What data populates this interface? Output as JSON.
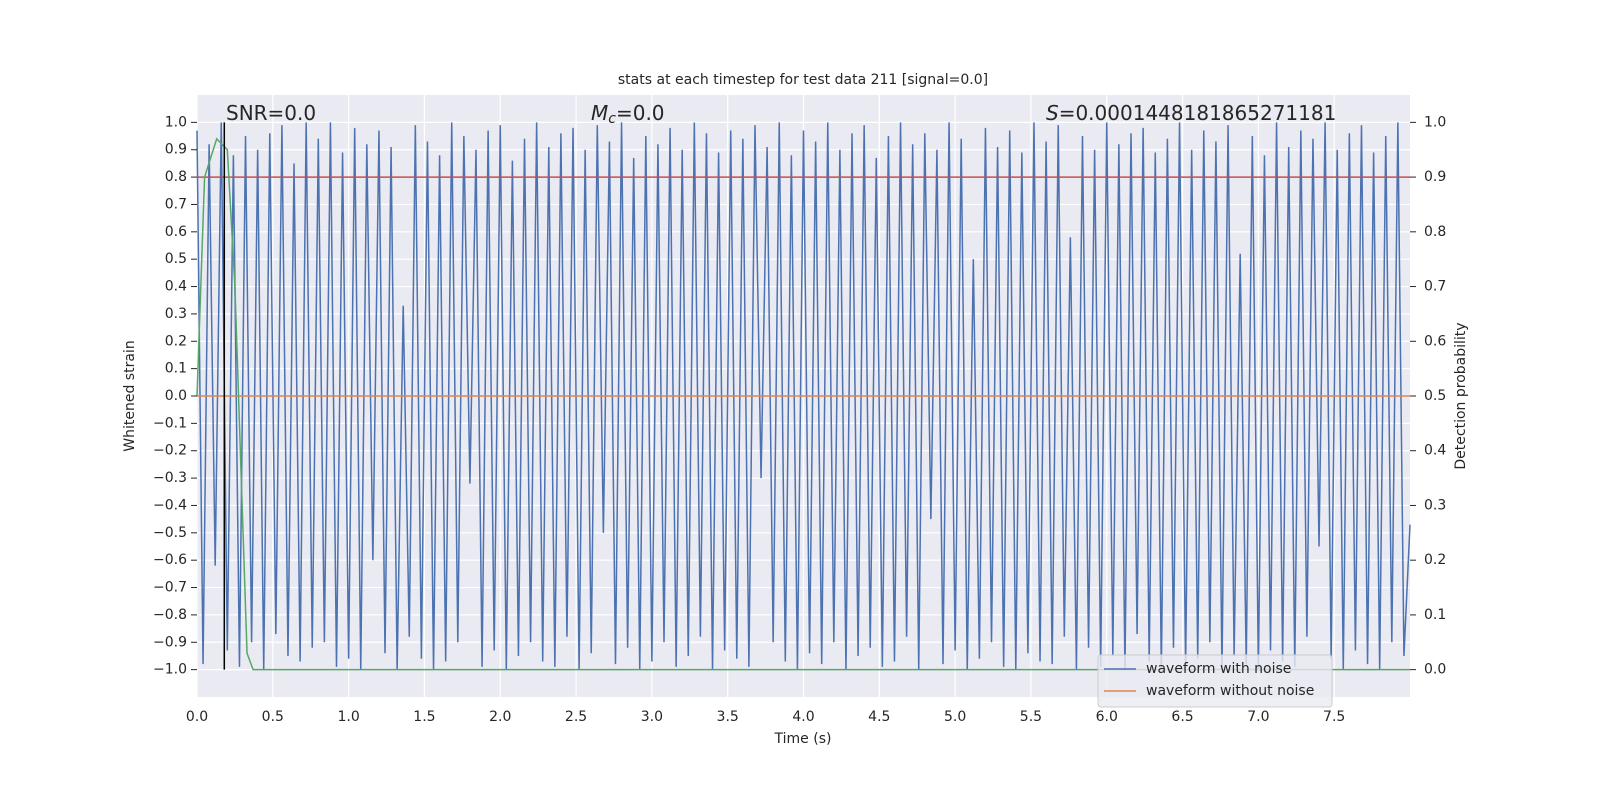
{
  "chart_data": {
    "type": "line",
    "title": "stats at each timestep for test data 211 [signal=0.0]",
    "xlabel": "Time (s)",
    "ylabel": "Whitened strain",
    "y2label": "Detection probability",
    "annotations": [
      {
        "parts": [
          "SNR=0.0"
        ]
      },
      {
        "parts": [
          "M",
          "c",
          "=0.0"
        ]
      },
      {
        "parts": [
          "S",
          "=0.0001448181865271181"
        ]
      }
    ],
    "xlim": [
      0,
      8
    ],
    "ylim": [
      -1.1,
      1.1
    ],
    "y2lim": [
      -0.05,
      1.05
    ],
    "grid": true,
    "legend": "lower right",
    "vline_x": 0.18,
    "xticks": [
      {
        "value": 0,
        "label": "0.0"
      },
      {
        "value": 0.5,
        "label": "0.5"
      },
      {
        "value": 1,
        "label": "1.0"
      },
      {
        "value": 1.5,
        "label": "1.5"
      },
      {
        "value": 2,
        "label": "2.0"
      },
      {
        "value": 2.5,
        "label": "2.5"
      },
      {
        "value": 3,
        "label": "3.0"
      },
      {
        "value": 3.5,
        "label": "3.5"
      },
      {
        "value": 4,
        "label": "4.0"
      },
      {
        "value": 4.5,
        "label": "4.5"
      },
      {
        "value": 5,
        "label": "5.0"
      },
      {
        "value": 5.5,
        "label": "5.5"
      },
      {
        "value": 6,
        "label": "6.0"
      },
      {
        "value": 6.5,
        "label": "6.5"
      },
      {
        "value": 7,
        "label": "7.0"
      },
      {
        "value": 7.5,
        "label": "7.5"
      }
    ],
    "yticks": [
      {
        "value": 1,
        "label": "1.0"
      },
      {
        "value": 0.9,
        "label": "0.9"
      },
      {
        "value": 0.8,
        "label": "0.8"
      },
      {
        "value": 0.7,
        "label": "0.7"
      },
      {
        "value": 0.6,
        "label": "0.6"
      },
      {
        "value": 0.5,
        "label": "0.5"
      },
      {
        "value": 0.4,
        "label": "0.4"
      },
      {
        "value": 0.3,
        "label": "0.3"
      },
      {
        "value": 0.2,
        "label": "0.2"
      },
      {
        "value": 0.1,
        "label": "0.1"
      },
      {
        "value": 0,
        "label": "0.0"
      },
      {
        "value": -0.1,
        "label": "−0.1"
      },
      {
        "value": -0.2,
        "label": "−0.2"
      },
      {
        "value": -0.3,
        "label": "−0.3"
      },
      {
        "value": -0.4,
        "label": "−0.4"
      },
      {
        "value": -0.5,
        "label": "−0.5"
      },
      {
        "value": -0.6,
        "label": "−0.6"
      },
      {
        "value": -0.7,
        "label": "−0.7"
      },
      {
        "value": -0.8,
        "label": "−0.8"
      },
      {
        "value": -0.9,
        "label": "−0.9"
      },
      {
        "value": -1,
        "label": "−1.0"
      }
    ],
    "y2ticks": [
      {
        "value": 1,
        "label": "1.0"
      },
      {
        "value": 0.9,
        "label": "0.9"
      },
      {
        "value": 0.8,
        "label": "0.8"
      },
      {
        "value": 0.7,
        "label": "0.7"
      },
      {
        "value": 0.6,
        "label": "0.6"
      },
      {
        "value": 0.5,
        "label": "0.5"
      },
      {
        "value": 0.4,
        "label": "0.4"
      },
      {
        "value": 0.3,
        "label": "0.3"
      },
      {
        "value": 0.2,
        "label": "0.2"
      },
      {
        "value": 0.1,
        "label": "0.1"
      },
      {
        "value": 0,
        "label": "0.0"
      }
    ],
    "series": [
      {
        "name": "waveform with noise",
        "color": "#4c72b0",
        "x": [
          0,
          0.04,
          0.08,
          0.12,
          0.16,
          0.2,
          0.24,
          0.28,
          0.32,
          0.36,
          0.4,
          0.44,
          0.48,
          0.52,
          0.56,
          0.6,
          0.64,
          0.68,
          0.72,
          0.76,
          0.8,
          0.84,
          0.88,
          0.92,
          0.96,
          1,
          1.04,
          1.08,
          1.12,
          1.16,
          1.2,
          1.24,
          1.28,
          1.32,
          1.36,
          1.4,
          1.44,
          1.48,
          1.52,
          1.56,
          1.6,
          1.64,
          1.68,
          1.72,
          1.76,
          1.8,
          1.84,
          1.88,
          1.92,
          1.96,
          2,
          2.04,
          2.08,
          2.12,
          2.16,
          2.2,
          2.24,
          2.28,
          2.32,
          2.36,
          2.4,
          2.44,
          2.48,
          2.52,
          2.56,
          2.6,
          2.64,
          2.68,
          2.72,
          2.76,
          2.8,
          2.84,
          2.88,
          2.92,
          2.96,
          3,
          3.04,
          3.08,
          3.12,
          3.16,
          3.2,
          3.24,
          3.28,
          3.32,
          3.36,
          3.4,
          3.44,
          3.48,
          3.52,
          3.56,
          3.6,
          3.64,
          3.68,
          3.72,
          3.76,
          3.8,
          3.84,
          3.88,
          3.92,
          3.96,
          4,
          4.04,
          4.08,
          4.12,
          4.16,
          4.2,
          4.24,
          4.28,
          4.32,
          4.36,
          4.4,
          4.44,
          4.48,
          4.52,
          4.56,
          4.6,
          4.64,
          4.68,
          4.72,
          4.76,
          4.8,
          4.84,
          4.88,
          4.92,
          4.96,
          5,
          5.04,
          5.08,
          5.12,
          5.16,
          5.2,
          5.24,
          5.28,
          5.32,
          5.36,
          5.4,
          5.44,
          5.48,
          5.52,
          5.56,
          5.6,
          5.64,
          5.68,
          5.72,
          5.76,
          5.8,
          5.84,
          5.88,
          5.92,
          5.96,
          6,
          6.04,
          6.08,
          6.12,
          6.16,
          6.2,
          6.24,
          6.28,
          6.32,
          6.36,
          6.4,
          6.44,
          6.48,
          6.52,
          6.56,
          6.6,
          6.64,
          6.68,
          6.72,
          6.76,
          6.8,
          6.84,
          6.88,
          6.92,
          6.96,
          7,
          7.04,
          7.08,
          7.12,
          7.16,
          7.2,
          7.24,
          7.28,
          7.32,
          7.36,
          7.4,
          7.44,
          7.48,
          7.52,
          7.56,
          7.6,
          7.64,
          7.68,
          7.72,
          7.76,
          7.8,
          7.84,
          7.88,
          7.92,
          7.96,
          8
        ],
        "values": [
          0.97,
          -0.98,
          0.92,
          -0.62,
          1.0,
          -0.93,
          0.88,
          -0.99,
          0.95,
          -0.9,
          0.9,
          -1.0,
          0.96,
          -0.87,
          0.99,
          -0.95,
          0.85,
          -0.97,
          1.0,
          -0.92,
          0.94,
          -0.9,
          1.0,
          -0.99,
          0.89,
          -0.96,
          0.98,
          -1.0,
          0.92,
          -0.6,
          0.97,
          -0.94,
          0.91,
          -1.0,
          0.33,
          -0.88,
          0.99,
          -0.96,
          0.93,
          -1.0,
          0.88,
          -0.97,
          1.0,
          -0.9,
          0.95,
          -0.32,
          0.9,
          -0.99,
          0.97,
          -0.93,
          0.99,
          -1.0,
          0.86,
          -0.95,
          0.94,
          -0.9,
          1.0,
          -0.97,
          0.91,
          -0.99,
          0.96,
          -0.88,
          0.98,
          -1.0,
          0.9,
          -0.94,
          0.99,
          -0.5,
          0.93,
          -0.98,
          1.0,
          -0.92,
          0.87,
          -1.0,
          0.95,
          -0.97,
          0.92,
          -0.9,
          0.98,
          -0.99,
          0.9,
          -0.95,
          1.0,
          -0.88,
          0.96,
          -1.0,
          0.89,
          -0.93,
          0.97,
          -0.96,
          0.94,
          -0.99,
          0.99,
          -0.3,
          0.91,
          -0.9,
          1.0,
          -0.97,
          0.88,
          -1.0,
          0.97,
          -0.94,
          0.93,
          -0.98,
          1.0,
          -0.9,
          0.9,
          -1.0,
          0.96,
          -0.95,
          0.99,
          -0.92,
          0.87,
          -0.99,
          0.95,
          -0.97,
          1.0,
          -0.88,
          0.92,
          -1.0,
          0.96,
          -0.45,
          0.9,
          -0.98,
          1.0,
          -0.93,
          0.94,
          -1.0,
          0.5,
          -0.96,
          0.98,
          -0.9,
          0.91,
          -0.99,
          0.97,
          -1.0,
          0.89,
          -0.94,
          1.0,
          -0.97,
          0.93,
          -0.98,
          0.99,
          -0.88,
          0.58,
          -1.0,
          0.95,
          -0.92,
          0.9,
          -0.99,
          1.0,
          -0.95,
          0.92,
          -1.0,
          0.96,
          -0.87,
          0.98,
          -0.97,
          0.89,
          -1.0,
          0.94,
          -0.92,
          1.0,
          -0.99,
          0.9,
          -0.96,
          0.97,
          -0.9,
          0.93,
          -1.0,
          0.99,
          -0.95,
          0.52,
          -0.98,
          0.95,
          -1.0,
          0.88,
          -0.93,
          1.0,
          -0.97,
          0.91,
          -0.99,
          0.97,
          -0.88,
          0.94,
          -0.55,
          1.0,
          -0.96,
          0.9,
          -1.0,
          0.96,
          -0.93,
          0.99,
          -0.98,
          0.89,
          -1.0,
          0.95,
          -0.9,
          1.0,
          -0.95,
          -0.47
        ]
      },
      {
        "name": "waveform without noise",
        "color": "#dd8452",
        "x": [
          0,
          8
        ],
        "values": [
          0,
          0
        ]
      },
      {
        "color": "#c44e52",
        "x": [
          0,
          8
        ],
        "values": [
          0.8,
          0.8
        ]
      },
      {
        "color": "#55a868",
        "axis": "y2",
        "x": [
          0,
          0.05,
          0.13,
          0.2,
          0.25,
          0.33,
          0.37,
          8
        ],
        "values": [
          0.5,
          0.9,
          0.97,
          0.95,
          0.7,
          0.03,
          0.0,
          0.0
        ]
      }
    ]
  }
}
